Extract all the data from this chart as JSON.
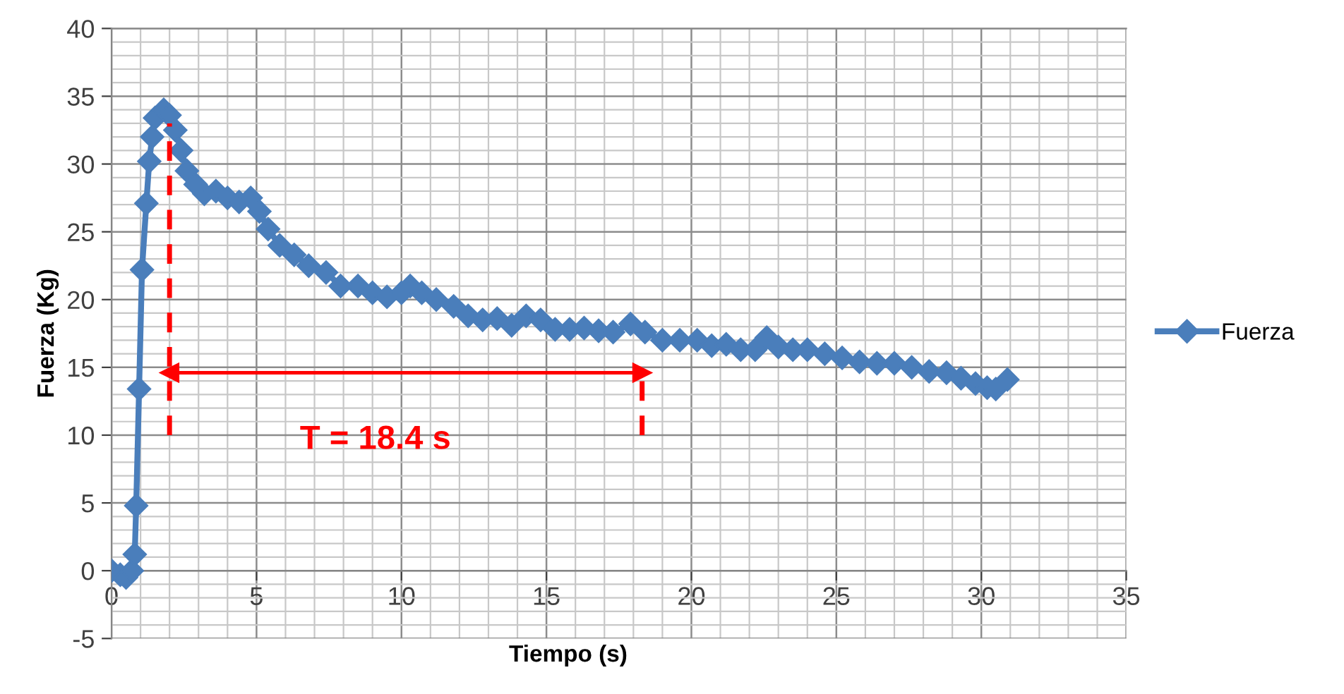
{
  "chart_data": {
    "type": "line",
    "xlabel": "Tiempo (s)",
    "ylabel": "Fuerza (Kg)",
    "xlim": [
      0,
      35
    ],
    "xticks": [
      0,
      5,
      10,
      15,
      20,
      25,
      30,
      35
    ],
    "ylim": [
      -5,
      40
    ],
    "yticks": [
      -5,
      0,
      5,
      10,
      15,
      20,
      25,
      30,
      35,
      40
    ],
    "grid": true,
    "legend": "right",
    "marker": "diamond",
    "line_style": "solid",
    "annotations": [
      "T = 18.4 s"
    ],
    "series": [
      {
        "name": "Fuerza",
        "color": "#4a7ebb",
        "x": [
          0,
          0.3,
          0.5,
          0.7,
          0.8,
          0.85,
          0.95,
          1.05,
          1.2,
          1.3,
          1.4,
          1.5,
          1.8,
          2.0,
          2.2,
          2.4,
          2.6,
          2.9,
          3.2,
          3.6,
          4.0,
          4.4,
          4.8,
          5.1,
          5.4,
          5.8,
          6.3,
          6.8,
          7.4,
          7.9,
          8.5,
          9.0,
          9.5,
          10,
          10.3,
          10.7,
          11.2,
          11.8,
          12.3,
          12.8,
          13.3,
          13.8,
          14.3,
          14.8,
          15.3,
          15.8,
          16.3,
          16.8,
          17.3,
          17.9,
          18.4,
          19,
          19.6,
          20.2,
          20.7,
          21.2,
          21.7,
          22.2,
          22.6,
          23.0,
          23.5,
          24.0,
          24.6,
          25.2,
          25.8,
          26.4,
          27.0,
          27.6,
          28.2,
          28.8,
          29.3,
          29.8,
          30.2,
          30.5,
          30.9
        ],
        "values": [
          0,
          -0.3,
          -0.5,
          0,
          1.2,
          4.8,
          13.4,
          22.2,
          27.1,
          30.2,
          32,
          33.4,
          34,
          33.6,
          32.5,
          31,
          29.5,
          28.5,
          27.8,
          28,
          27.5,
          27.2,
          27.5,
          26.5,
          25.2,
          24,
          23.3,
          22.5,
          22,
          21,
          21,
          20.5,
          20.2,
          20.5,
          21,
          20.5,
          20,
          19.5,
          18.8,
          18.5,
          18.6,
          18.1,
          18.8,
          18.5,
          17.8,
          17.8,
          17.9,
          17.7,
          17.6,
          18.2,
          17.6,
          17,
          17,
          17,
          16.6,
          16.7,
          16.3,
          16.3,
          17.2,
          16.5,
          16.3,
          16.3,
          16.0,
          15.7,
          15.4,
          15.3,
          15.3,
          15,
          14.7,
          14.6,
          14.2,
          13.8,
          13.5,
          13.4,
          14.1
        ]
      },
      {
        "type": "line",
        "color": "#ff0000",
        "line_style": "dashed",
        "marker": "none",
        "x": [
          2.0,
          2.0
        ],
        "values": [
          10,
          33
        ]
      },
      {
        "type": "line",
        "color": "#ff0000",
        "line_style": "dashed",
        "marker": "none",
        "x": [
          18.3,
          18.3
        ],
        "values": [
          10,
          15
        ]
      },
      {
        "type": "line",
        "color": "#ff0000",
        "line_style": "solid",
        "marker": "triangle",
        "x": [
          2.0,
          18.3
        ],
        "values": [
          14.6,
          14.6
        ]
      }
    ]
  }
}
